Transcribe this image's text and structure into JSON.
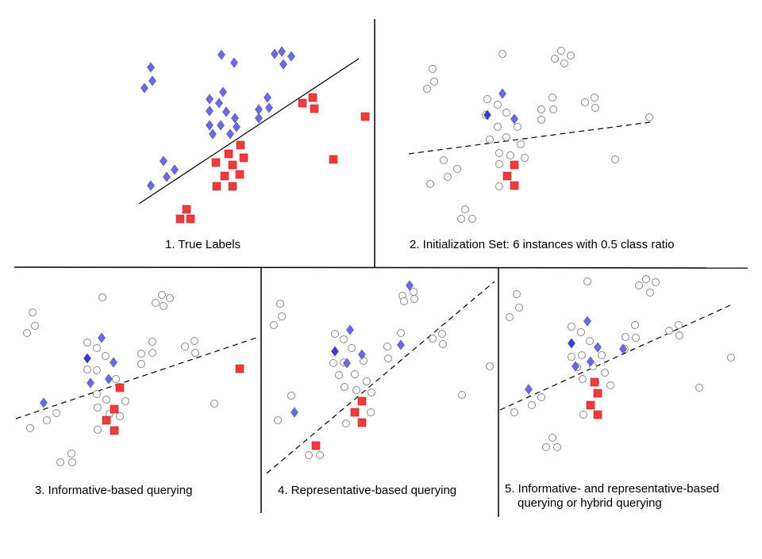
{
  "colors": {
    "positive_class": "#6b6bdc",
    "positive_selected": "#3a3ad0",
    "negative_class": "#ee3b3b",
    "unlabeled_stroke": "#888888",
    "line": "#000000",
    "background": "#ffffff"
  },
  "legend_icons": {
    "positive": "diamond-icon",
    "negative": "square-icon",
    "unlabeled": "circle-icon"
  },
  "panels": [
    {
      "id": "true-labels",
      "caption_lines": [
        "1. True Labels"
      ],
      "boundary_style": "solid"
    },
    {
      "id": "initialization-set",
      "caption_lines": [
        "2. Initialization Set: 6 instances with 0.5 class ratio"
      ],
      "boundary_style": "dashed"
    },
    {
      "id": "informative-querying",
      "caption_lines": [
        "3. Informative-based querying"
      ],
      "boundary_style": "dashed"
    },
    {
      "id": "representative-querying",
      "caption_lines": [
        "4. Representative-based querying"
      ],
      "boundary_style": "dashed"
    },
    {
      "id": "hybrid-querying",
      "caption_lines": [
        "5. Informative- and representative-based",
        "querying or hybrid querying"
      ],
      "boundary_style": "dashed"
    }
  ]
}
